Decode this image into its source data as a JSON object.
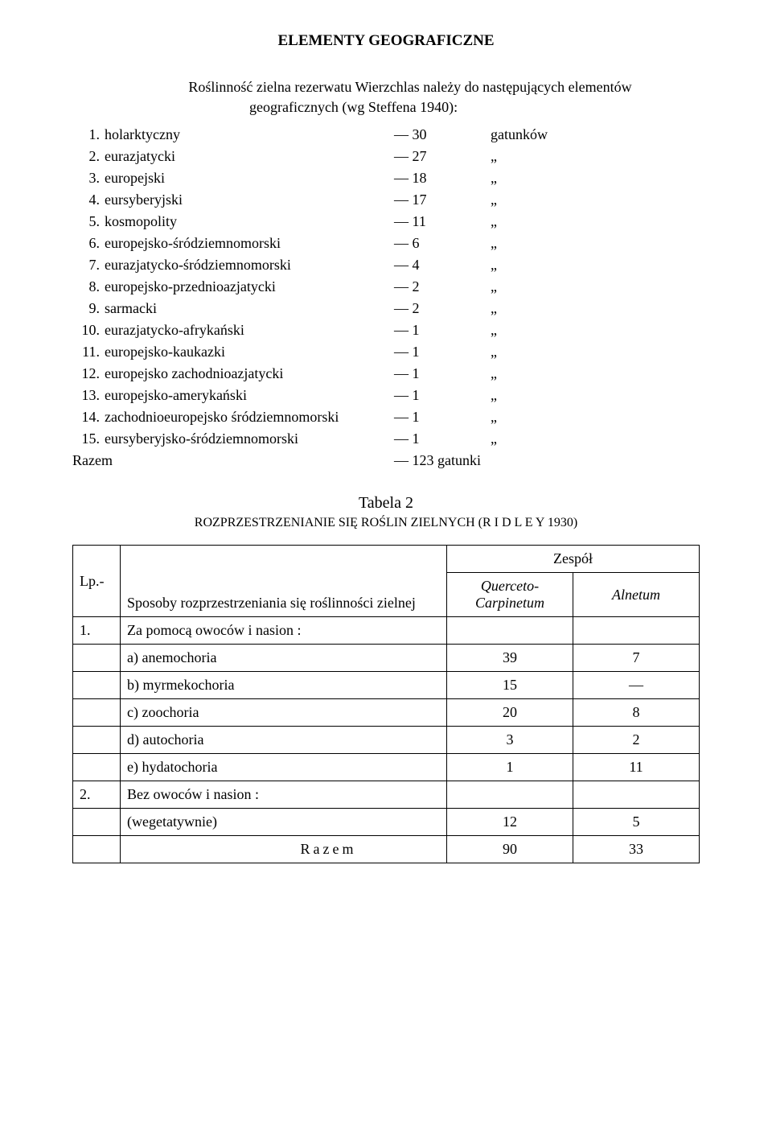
{
  "title": "ELEMENTY GEOGRAFICZNE",
  "intro_line1": "Roślinność zielna rezerwatu Wierzchlas należy do następujących elementów",
  "intro_line2": "geograficznych (wg Steffena 1940):",
  "elements": [
    {
      "n": "1.",
      "label": "holarktyczny",
      "val": "— 30",
      "unit": "gatunków"
    },
    {
      "n": "2.",
      "label": "eurazjatycki",
      "val": "— 27",
      "unit": "„"
    },
    {
      "n": "3.",
      "label": "europejski",
      "val": "— 18",
      "unit": "„"
    },
    {
      "n": "4.",
      "label": "eursyberyjski",
      "val": "— 17",
      "unit": "„"
    },
    {
      "n": "5.",
      "label": "kosmopolity",
      "val": "— 11",
      "unit": "„"
    },
    {
      "n": "6.",
      "label": "europejsko-śródziemnomorski",
      "val": "—  6",
      "unit": "„"
    },
    {
      "n": "7.",
      "label": "eurazjatycko-śródziemnomorski",
      "val": "—  4",
      "unit": "„"
    },
    {
      "n": "8.",
      "label": "europejsko-przednioazjatycki",
      "val": "—  2",
      "unit": "„"
    },
    {
      "n": "9.",
      "label": "sarmacki",
      "val": "—  2",
      "unit": "„"
    },
    {
      "n": "10.",
      "label": "eurazjatycko-afrykański",
      "val": "—  1",
      "unit": "„"
    },
    {
      "n": "11.",
      "label": "europejsko-kaukazki",
      "val": "—  1",
      "unit": "„"
    },
    {
      "n": "12.",
      "label": "europejsko zachodnioazjatycki",
      "val": "—  1",
      "unit": "„"
    },
    {
      "n": "13.",
      "label": "europejsko-amerykański",
      "val": "—  1",
      "unit": "„"
    },
    {
      "n": "14.",
      "label": "zachodnioeuropejsko śródziemnomorski",
      "val": "—  1",
      "unit": "„"
    },
    {
      "n": "15.",
      "label": "eursyberyjsko-śródziemnomorski",
      "val": "—  1",
      "unit": "„"
    }
  ],
  "razem_label": "Razem",
  "razem_val": "— 123 gatunki",
  "table2": {
    "title": "Tabela 2",
    "subtitle": "ROZPRZESTRZENIANIE SIĘ ROŚLIN ZIELNYCH (R I D L E Y 1930)",
    "hdr_lp": "Lp.-",
    "hdr_method": "Sposoby rozprzestrzeniania się roślinności zielnej",
    "hdr_zespol": "Zespół",
    "hdr_qc1": "Querceto-",
    "hdr_qc2": "Carpinetum",
    "hdr_al": "Alnetum",
    "sec1_n": "1.",
    "sec1_label": "Za pomocą owoców i nasion :",
    "rows1": [
      {
        "label": "a)  anemochoria",
        "qc": "39",
        "al": "7"
      },
      {
        "label": "b)  myrmekochoria",
        "qc": "15",
        "al": "—"
      },
      {
        "label": "c)  zoochoria",
        "qc": "20",
        "al": "8"
      },
      {
        "label": "d)  autochoria",
        "qc": "3",
        "al": "2"
      },
      {
        "label": "e)  hydatochoria",
        "qc": "1",
        "al": "11"
      }
    ],
    "sec2_n": "2.",
    "sec2_label": "Bez owoców i nasion :",
    "sec2_sub": "(wegetatywnie)",
    "sec2_qc": "12",
    "sec2_al": "5",
    "razem": "Razem",
    "razem_qc": "90",
    "razem_al": "33"
  }
}
